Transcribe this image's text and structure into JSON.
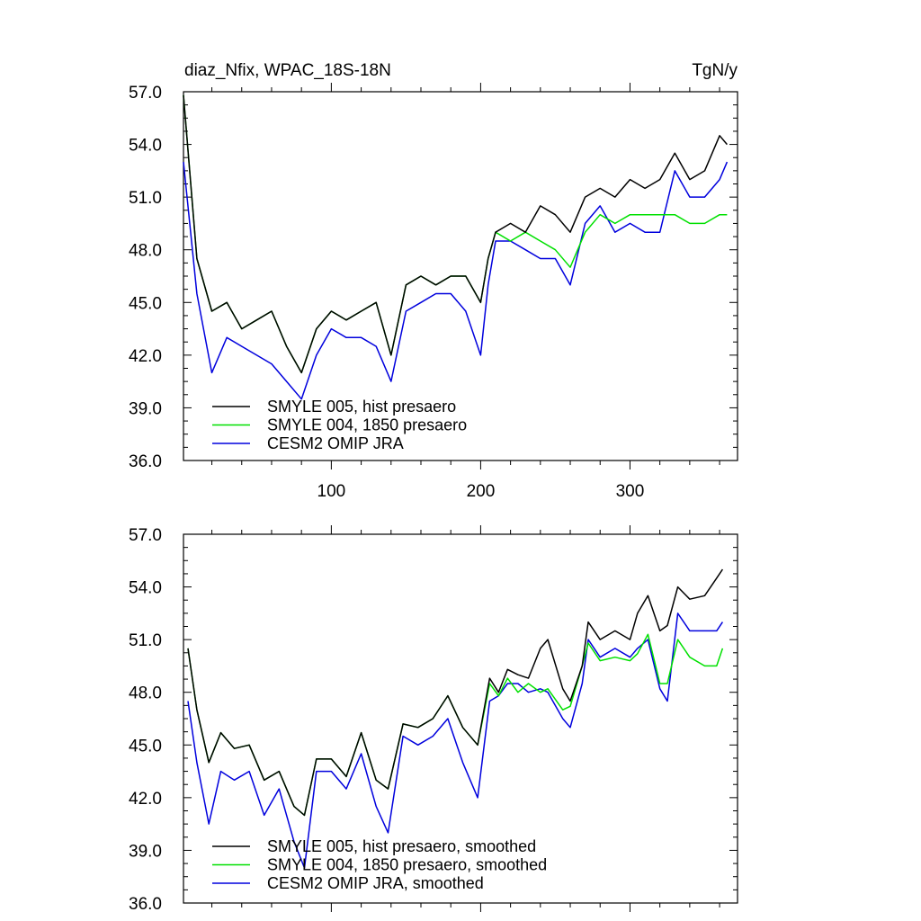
{
  "figure": {
    "left_title": "diaz_Nfix, WPAC_18S-18N",
    "right_title": "TgN/y"
  },
  "chart_data": [
    {
      "type": "line",
      "title": "diaz_Nfix, WPAC_18S-18N",
      "units": "TgN/y",
      "xlim": [
        1,
        372
      ],
      "ylim": [
        36,
        57
      ],
      "yticks": [
        "36.0",
        "39.0",
        "42.0",
        "45.0",
        "48.0",
        "51.0",
        "54.0",
        "57.0"
      ],
      "xticks": [
        "100",
        "200",
        "300"
      ],
      "legend_position": "bottom-left",
      "series": [
        {
          "name": "SMYLE 005, hist presaero",
          "color": "#000000",
          "x": [
            1,
            10,
            20,
            30,
            40,
            50,
            60,
            70,
            80,
            90,
            100,
            110,
            120,
            130,
            140,
            150,
            160,
            170,
            180,
            190,
            200,
            205,
            210,
            220,
            230,
            240,
            250,
            260,
            270,
            280,
            290,
            300,
            310,
            320,
            330,
            340,
            350,
            360,
            365
          ],
          "values": [
            56.8,
            47.5,
            44.5,
            45.0,
            43.5,
            44.0,
            44.5,
            42.5,
            41.0,
            43.5,
            44.5,
            44.0,
            44.5,
            45.0,
            42.0,
            46.0,
            46.5,
            46.0,
            46.5,
            46.5,
            45.0,
            47.5,
            49.0,
            49.5,
            49.0,
            50.5,
            50.0,
            49.0,
            51.0,
            51.5,
            51.0,
            52.0,
            51.5,
            52.0,
            53.5,
            52.0,
            52.5,
            54.5,
            54.0
          ]
        },
        {
          "name": "SMYLE 004, 1850 presaero",
          "color": "#00e000",
          "x": [
            1,
            10,
            20,
            30,
            40,
            50,
            60,
            70,
            80,
            90,
            100,
            110,
            120,
            130,
            140,
            150,
            160,
            170,
            180,
            190,
            200,
            205,
            210,
            220,
            230,
            240,
            250,
            260,
            270,
            280,
            290,
            300,
            310,
            320,
            330,
            340,
            350,
            360,
            365
          ],
          "values": [
            56.8,
            47.5,
            44.5,
            45.0,
            43.5,
            44.0,
            44.5,
            42.5,
            41.0,
            43.5,
            44.5,
            44.0,
            44.5,
            45.0,
            42.0,
            46.0,
            46.5,
            46.0,
            46.5,
            46.5,
            45.0,
            47.5,
            49.0,
            48.5,
            49.0,
            48.5,
            48.0,
            47.0,
            49.0,
            50.0,
            49.5,
            50.0,
            50.0,
            50.0,
            50.0,
            49.5,
            49.5,
            50.0,
            50.0
          ]
        },
        {
          "name": "CESM2 OMIP JRA",
          "color": "#0000dd",
          "x": [
            1,
            10,
            20,
            30,
            40,
            50,
            60,
            70,
            80,
            90,
            100,
            110,
            120,
            130,
            140,
            150,
            160,
            170,
            180,
            190,
            200,
            205,
            210,
            220,
            230,
            240,
            250,
            260,
            270,
            280,
            290,
            300,
            310,
            320,
            330,
            340,
            350,
            360,
            365
          ],
          "values": [
            53.0,
            45.5,
            41.0,
            43.0,
            42.5,
            42.0,
            41.5,
            40.5,
            39.5,
            42.0,
            43.5,
            43.0,
            43.0,
            42.5,
            40.5,
            44.5,
            45.0,
            45.5,
            45.5,
            44.5,
            42.0,
            46.0,
            48.5,
            48.5,
            48.0,
            47.5,
            47.5,
            46.0,
            49.5,
            50.5,
            49.0,
            49.5,
            49.0,
            49.0,
            52.5,
            51.0,
            51.0,
            52.0,
            53.0
          ]
        }
      ]
    },
    {
      "type": "line",
      "title": "",
      "units": "",
      "xlim": [
        1,
        372
      ],
      "ylim": [
        36,
        57
      ],
      "yticks": [
        "36.0",
        "39.0",
        "42.0",
        "45.0",
        "48.0",
        "51.0",
        "54.0",
        "57.0"
      ],
      "xticks": [],
      "legend_position": "bottom-left",
      "series": [
        {
          "name": "SMYLE 005, hist presaero, smoothed",
          "color": "#000000",
          "x": [
            4,
            10,
            18,
            26,
            35,
            45,
            55,
            65,
            75,
            82,
            90,
            100,
            110,
            120,
            130,
            138,
            148,
            158,
            168,
            178,
            188,
            198,
            206,
            212,
            218,
            225,
            232,
            240,
            245,
            255,
            260,
            268,
            272,
            280,
            290,
            300,
            305,
            312,
            320,
            325,
            332,
            340,
            350,
            358,
            362
          ],
          "values": [
            50.5,
            47.0,
            44.0,
            45.7,
            44.8,
            45.0,
            43.0,
            43.5,
            41.5,
            41.0,
            44.2,
            44.2,
            43.2,
            45.7,
            43.0,
            42.5,
            46.2,
            46.0,
            46.5,
            47.8,
            46.0,
            45.0,
            48.8,
            48.0,
            49.3,
            49.0,
            48.8,
            50.5,
            51.0,
            48.2,
            47.5,
            49.5,
            52.0,
            51.0,
            51.5,
            51.0,
            52.5,
            53.5,
            51.5,
            51.8,
            54.0,
            53.3,
            53.5,
            54.5,
            55.0
          ]
        },
        {
          "name": "SMYLE 004, 1850 presaero, smoothed",
          "color": "#00e000",
          "x": [
            4,
            10,
            18,
            26,
            35,
            45,
            55,
            65,
            75,
            82,
            90,
            100,
            110,
            120,
            130,
            138,
            148,
            158,
            168,
            178,
            188,
            198,
            206,
            212,
            218,
            225,
            232,
            240,
            245,
            255,
            260,
            268,
            272,
            280,
            290,
            300,
            305,
            312,
            320,
            325,
            332,
            340,
            350,
            358,
            362
          ],
          "values": [
            50.5,
            47.0,
            44.0,
            45.7,
            44.8,
            45.0,
            43.0,
            43.5,
            41.5,
            41.0,
            44.2,
            44.2,
            43.2,
            45.7,
            43.0,
            42.5,
            46.2,
            46.0,
            46.5,
            47.8,
            46.0,
            45.0,
            48.5,
            47.8,
            48.8,
            48.0,
            48.5,
            48.0,
            48.2,
            47.0,
            47.2,
            49.5,
            50.8,
            49.8,
            50.0,
            49.8,
            50.2,
            51.3,
            48.5,
            48.5,
            51.0,
            50.0,
            49.5,
            49.5,
            50.5
          ]
        },
        {
          "name": "CESM2 OMIP JRA, smoothed",
          "color": "#0000dd",
          "x": [
            4,
            10,
            18,
            26,
            35,
            45,
            55,
            65,
            75,
            82,
            90,
            100,
            110,
            120,
            130,
            138,
            148,
            158,
            168,
            178,
            188,
            198,
            206,
            212,
            218,
            225,
            232,
            240,
            245,
            255,
            260,
            268,
            272,
            280,
            290,
            300,
            305,
            312,
            320,
            325,
            332,
            340,
            350,
            358,
            362
          ],
          "values": [
            47.5,
            44.0,
            40.5,
            43.5,
            43.0,
            43.5,
            41.0,
            42.5,
            39.5,
            38.0,
            43.5,
            43.5,
            42.5,
            44.5,
            41.5,
            40.0,
            45.5,
            45.0,
            45.5,
            46.5,
            44.0,
            42.0,
            47.5,
            47.8,
            48.5,
            48.5,
            48.0,
            48.2,
            48.0,
            46.5,
            46.0,
            48.5,
            51.0,
            50.0,
            50.5,
            50.0,
            50.5,
            51.0,
            48.2,
            47.5,
            52.5,
            51.5,
            51.5,
            51.5,
            52.0
          ]
        }
      ]
    }
  ]
}
